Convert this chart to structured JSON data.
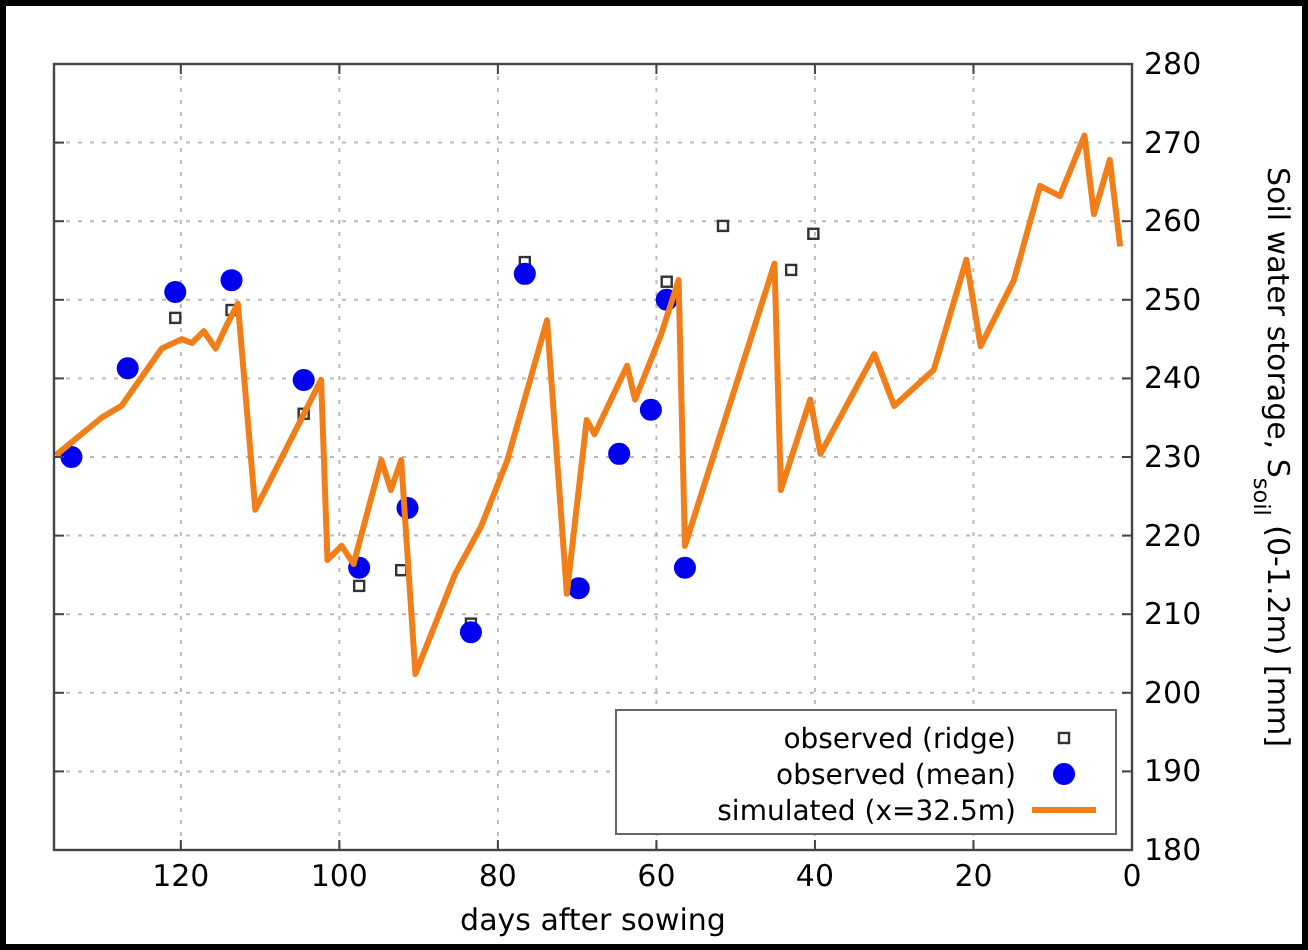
{
  "chart_data": {
    "type": "line",
    "xlabel": "days after sowing",
    "ylabel": "Soil water storage, S$_{soil}$ (0-1.2m) [mm]",
    "xlim": [
      136,
      0
    ],
    "xticks": [
      0,
      20,
      40,
      60,
      80,
      100,
      120
    ],
    "ylim": [
      180,
      280
    ],
    "yticks": [
      180,
      190,
      200,
      210,
      220,
      230,
      240,
      250,
      260,
      270,
      280
    ],
    "grid": true,
    "legend": "bottom right",
    "series": [
      {
        "name": "observed (ridge)",
        "type": "scatter",
        "marker": "square",
        "color": "#333333",
        "x": [
          120.7,
          113.6,
          104.5,
          97.5,
          92.2,
          83.4,
          76.6,
          58.7,
          51.6,
          43,
          40.2
        ],
        "values": [
          247.7,
          248.7,
          235.5,
          213.6,
          215.6,
          208.8,
          254.8,
          252.3,
          259.4,
          253.8,
          258.4
        ]
      },
      {
        "name": "observed (mean)",
        "type": "scatter",
        "marker": "circle",
        "color": "#0000ee",
        "x": [
          133.8,
          126.7,
          120.7,
          113.6,
          104.5,
          97.5,
          91.4,
          83.4,
          76.6,
          69.8,
          64.7,
          60.7,
          58.7,
          56.4
        ],
        "values": [
          230,
          241.3,
          251,
          252.5,
          239.8,
          215.9,
          223.5,
          207.7,
          253.3,
          213.3,
          230.4,
          236,
          250,
          215.9
        ]
      },
      {
        "name": "simulated (x=32.5m)",
        "type": "line",
        "marker": "none",
        "line_style": "solid",
        "color": "#f07f1a",
        "x": [
          135.8,
          130,
          127.5,
          122.4,
          119.9,
          118.6,
          117.1,
          115.6,
          114.1,
          112.8,
          110.6,
          102.3,
          101.5,
          99.7,
          98.2,
          94.7,
          93.5,
          92.2,
          90.4,
          85.4,
          82.1,
          78.8,
          73.8,
          71.3,
          68.8,
          67.8,
          63.7,
          62.7,
          59.4,
          57.2,
          56.4,
          45.1,
          44.3,
          40.6,
          39.3,
          32.5,
          30,
          25,
          20.9,
          19.1,
          14.9,
          11.6,
          9.1,
          6,
          4.8,
          2.8,
          1.5
        ],
        "values": [
          230.2,
          235,
          236.5,
          243.8,
          245,
          244.5,
          246,
          243.8,
          247,
          249.5,
          223.3,
          239.8,
          216.9,
          218.7,
          216.4,
          229.6,
          225.8,
          229.6,
          202.4,
          215.1,
          221.2,
          229.6,
          247.4,
          212.6,
          234.7,
          232.9,
          241.6,
          237.3,
          245.6,
          252.5,
          218.7,
          254.6,
          225.8,
          237.3,
          230.4,
          243.1,
          236.5,
          241.1,
          255.1,
          244.1,
          252.5,
          264.5,
          263.2,
          270.9,
          260.9,
          267.8,
          256.8
        ]
      }
    ]
  }
}
